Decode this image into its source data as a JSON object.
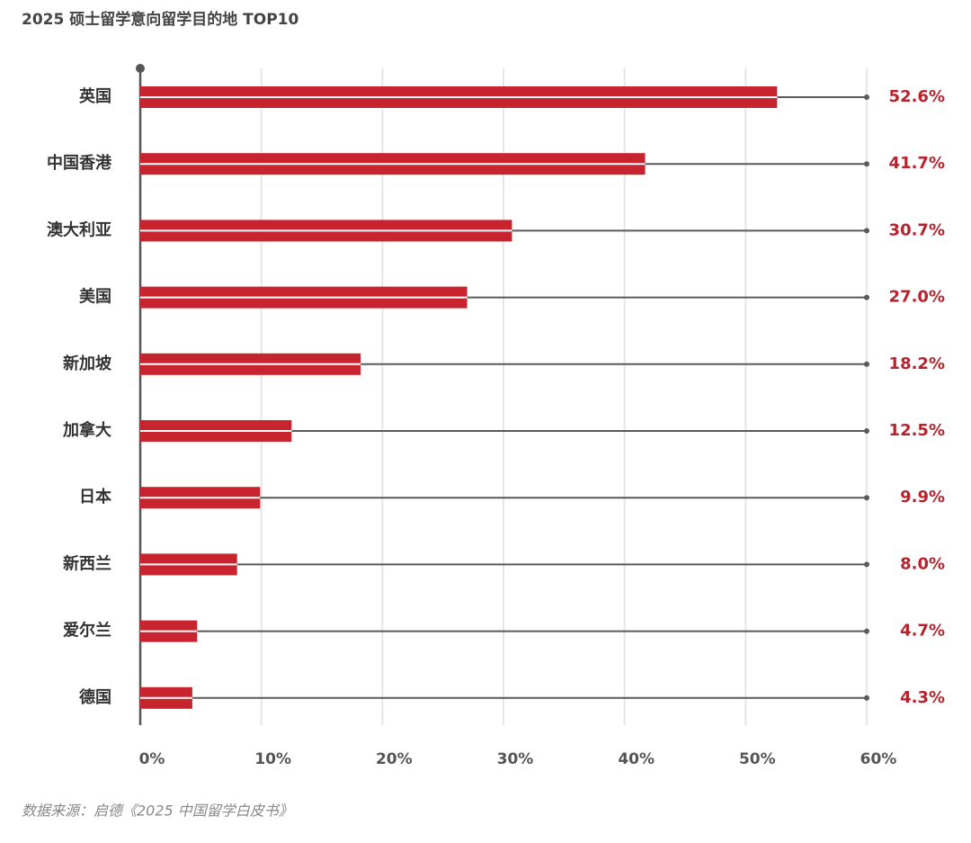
{
  "chart_data": {
    "type": "bar",
    "orientation": "horizontal",
    "title": "2025 硕士留学意向留学目的地 TOP10",
    "source": "数据来源：启德《2025 中国留学白皮书》",
    "categories": [
      "英国",
      "中国香港",
      "澳大利亚",
      "美国",
      "新加坡",
      "加拿大",
      "日本",
      "新西兰",
      "爱尔兰",
      "德国"
    ],
    "values": [
      52.6,
      41.7,
      30.7,
      27.0,
      18.2,
      12.5,
      9.9,
      8.0,
      4.7,
      4.3
    ],
    "value_labels": [
      "52.6%",
      "41.7%",
      "30.7%",
      "27.0%",
      "18.2%",
      "12.5%",
      "9.9%",
      "8.0%",
      "4.7%",
      "4.3%"
    ],
    "color": "#c8242f",
    "xlim": [
      0,
      60
    ],
    "xticks": [
      {
        "value": 0,
        "label": "0%"
      },
      {
        "value": 10,
        "label": "10%"
      },
      {
        "value": 20,
        "label": "20%"
      },
      {
        "value": 30,
        "label": "30%"
      },
      {
        "value": 40,
        "label": "40%"
      },
      {
        "value": 50,
        "label": "50%"
      },
      {
        "value": 60,
        "label": "60%"
      }
    ],
    "grid": true
  }
}
